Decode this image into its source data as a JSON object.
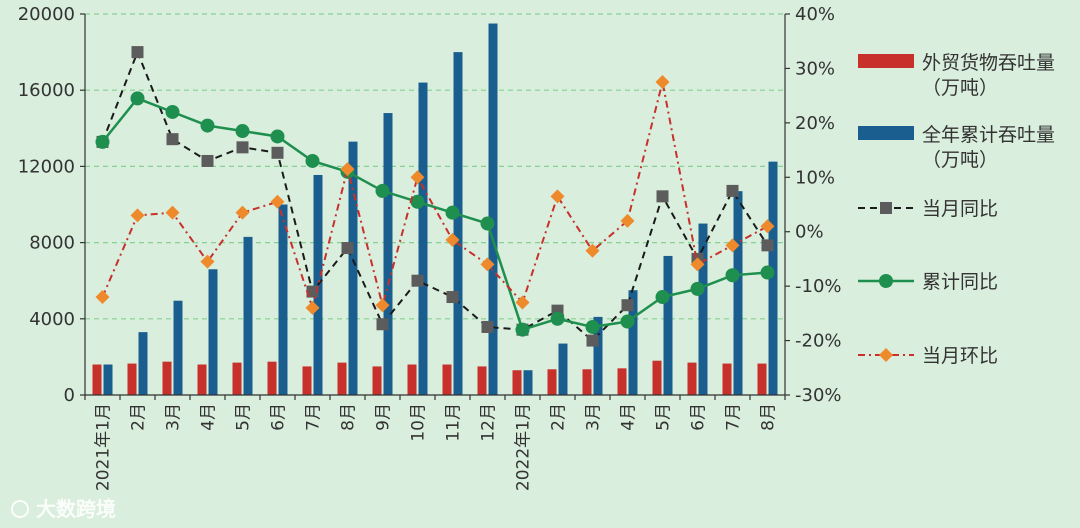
{
  "chart_data": {
    "type": "bar-line-combo",
    "categories": [
      "2021年1月",
      "2月",
      "3月",
      "4月",
      "5月",
      "6月",
      "7月",
      "8月",
      "9月",
      "10月",
      "11月",
      "12月",
      "2022年1月",
      "2月",
      "3月",
      "4月",
      "5月",
      "6月",
      "7月",
      "8月"
    ],
    "left_axis": {
      "ylim": [
        0,
        20000
      ],
      "ticks": [
        0,
        4000,
        8000,
        12000,
        16000,
        20000
      ]
    },
    "right_axis": {
      "ylim": [
        -30,
        40
      ],
      "ticks": [
        "-30%",
        "-20%",
        "-10%",
        "0%",
        "10%",
        "20%",
        "30%",
        "40%"
      ],
      "tick_values": [
        -30,
        -20,
        -10,
        0,
        10,
        20,
        30,
        40
      ]
    },
    "series": [
      {
        "name": "外贸货物吞吐量",
        "unit": "（万吨）",
        "kind": "bar",
        "axis": "left",
        "color": "#c8302c",
        "values": [
          1600,
          1650,
          1750,
          1600,
          1700,
          1750,
          1500,
          1700,
          1500,
          1600,
          1600,
          1500,
          1300,
          1350,
          1350,
          1400,
          1800,
          1700,
          1650,
          1650
        ]
      },
      {
        "name": "全年累计吞吐量",
        "unit": "（万吨）",
        "kind": "bar",
        "axis": "left",
        "color": "#1a5e8f",
        "values": [
          1600,
          3300,
          4950,
          6600,
          8300,
          10000,
          11550,
          13300,
          14800,
          16400,
          18000,
          19500,
          1300,
          2700,
          4100,
          5500,
          7300,
          9000,
          10700,
          12250
        ]
      },
      {
        "name": "当月同比",
        "kind": "line",
        "style": "dashed-square",
        "axis": "right",
        "color": "#1a1a1a",
        "marker_color": "#5c5c5c",
        "values": [
          16.5,
          33,
          17,
          13,
          15.5,
          14.5,
          -11,
          -3,
          -17,
          -9,
          -12,
          -17.5,
          -18,
          -14.5,
          -20,
          -13.5,
          6.5,
          -5,
          7.5,
          -2.5
        ]
      },
      {
        "name": "累计同比",
        "kind": "line",
        "style": "solid-circle",
        "axis": "right",
        "color": "#1e8f4e",
        "values": [
          16.5,
          24.5,
          22,
          19.5,
          18.5,
          17.5,
          13,
          11,
          7.5,
          5.5,
          3.5,
          1.5,
          -18,
          -16,
          -17.5,
          -16.5,
          -12,
          -10.5,
          -8,
          -7.5
        ]
      },
      {
        "name": "当月环比",
        "kind": "line",
        "style": "dashdot-diamond",
        "axis": "right",
        "color": "#c8302c",
        "marker_color": "#ef8a2c",
        "values": [
          -12,
          3,
          3.5,
          -5.5,
          3.5,
          5.5,
          -14,
          11.5,
          -13.5,
          10,
          -1.5,
          -6,
          -13,
          6.5,
          -3.5,
          2,
          27.5,
          -6,
          -2.5,
          1
        ]
      }
    ]
  },
  "legend": {
    "items": [
      {
        "label": "外贸货物吞吐量",
        "sub": "（万吨）"
      },
      {
        "label": "全年累计吞吐量",
        "sub": "（万吨）"
      },
      {
        "label": "当月同比"
      },
      {
        "label": "累计同比"
      },
      {
        "label": "当月环比"
      }
    ]
  },
  "watermark": {
    "text": "大数跨境"
  },
  "colors": {
    "background": "#d9eedc",
    "grid": "#86d192",
    "axis": "#333333"
  }
}
